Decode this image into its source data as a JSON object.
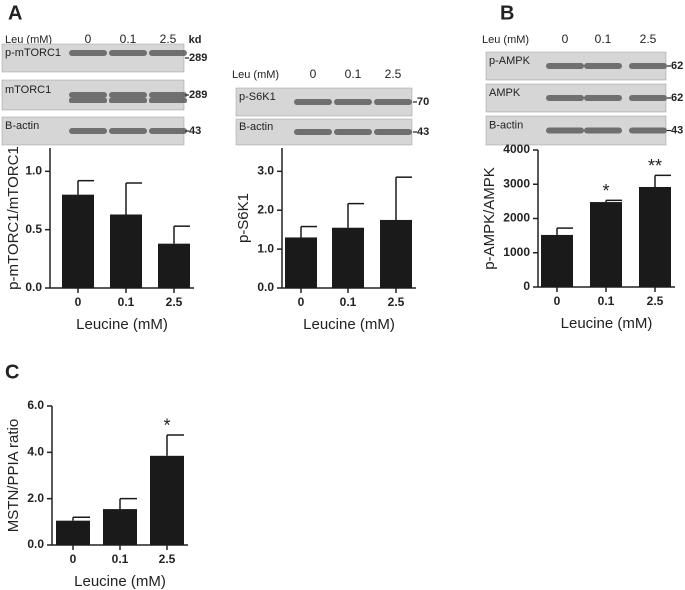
{
  "panel_labels": [
    "A",
    "B",
    "C"
  ],
  "blots": [
    {
      "header": "Leu (mM)",
      "lanes": [
        "0",
        "0.1",
        "2.5"
      ],
      "unit": "kd",
      "rows": [
        {
          "label": "p-mTORC1",
          "kd": "289"
        },
        {
          "label": "mTORC1",
          "kd": "289"
        },
        {
          "label": "B-actin",
          "kd": "43"
        }
      ]
    },
    {
      "header": "Leu (mM)",
      "lanes": [
        "0",
        "0.1",
        "2.5"
      ],
      "rows": [
        {
          "label": "p-S6K1",
          "kd": "70"
        },
        {
          "label": "B-actin",
          "kd": "43"
        }
      ]
    },
    {
      "header": "Leu (mM)",
      "lanes": [
        "0",
        "0.1",
        "2.5"
      ],
      "rows": [
        {
          "label": "p-AMPK",
          "kd": "62"
        },
        {
          "label": "AMPK",
          "kd": "62"
        },
        {
          "label": "B-actin",
          "kd": "43"
        }
      ]
    }
  ],
  "chart_data": [
    {
      "type": "bar",
      "ylabel": "p-mTORC1/mTORC1",
      "xlabel": "Leucine (mM)",
      "categories": [
        "0",
        "0.1",
        "2.5"
      ],
      "values": [
        0.8,
        0.63,
        0.38
      ],
      "errors": [
        0.12,
        0.27,
        0.15
      ],
      "color": "#1a1a1a",
      "ylim": [
        0,
        1.2
      ],
      "yticks": [
        {
          "value": 0,
          "label": "0.0"
        },
        {
          "value": 0.5,
          "label": "0.5"
        },
        {
          "value": 1,
          "label": "1.0"
        }
      ]
    },
    {
      "type": "bar",
      "ylabel": "p-S6K1",
      "xlabel": "Leucine (mM)",
      "categories": [
        "0",
        "0.1",
        "2.5"
      ],
      "values": [
        1.3,
        1.55,
        1.75
      ],
      "errors": [
        0.28,
        0.62,
        1.1
      ],
      "color": "#1a1a1a",
      "ylim": [
        0,
        3.6
      ],
      "yticks": [
        {
          "value": 0,
          "label": "0.0"
        },
        {
          "value": 1,
          "label": "1.0"
        },
        {
          "value": 2,
          "label": "2.0"
        },
        {
          "value": 3,
          "label": "3.0"
        }
      ]
    },
    {
      "type": "bar",
      "ylabel": "p-AMPK/AMPK",
      "xlabel": "Leucine (mM)",
      "categories": [
        "0",
        "0.1",
        "2.5"
      ],
      "values": [
        1520,
        2480,
        2920
      ],
      "errors": [
        200,
        50,
        340
      ],
      "color": "#1a1a1a",
      "value_annotations": [
        null,
        "*",
        "**"
      ],
      "ylim": [
        0,
        4000
      ],
      "yticks": [
        0,
        1000,
        2000,
        3000,
        4000
      ]
    },
    {
      "type": "bar",
      "ylabel": "MSTN/PPIA ratio",
      "xlabel": "Leucine (mM)",
      "categories": [
        "0",
        "0.1",
        "2.5"
      ],
      "values": [
        1.05,
        1.55,
        3.85
      ],
      "errors": [
        0.15,
        0.45,
        0.9
      ],
      "color": "#1a1a1a",
      "value_annotations": [
        null,
        null,
        "*"
      ],
      "ylim": [
        0,
        6
      ],
      "yticks": [
        {
          "value": 0,
          "label": "0.0"
        },
        {
          "value": 2,
          "label": "2.0"
        },
        {
          "value": 4,
          "label": "4.0"
        },
        {
          "value": 6,
          "label": "6.0"
        }
      ]
    }
  ]
}
